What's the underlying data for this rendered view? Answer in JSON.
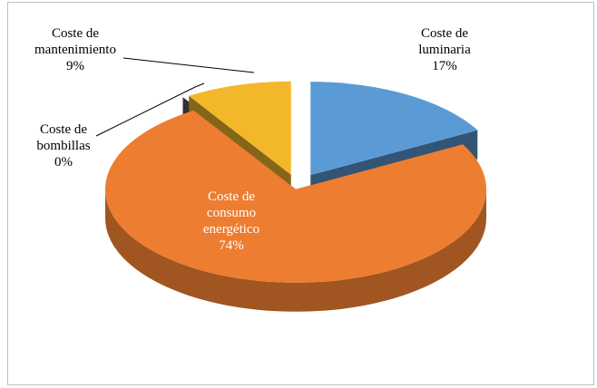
{
  "chart_data": {
    "type": "pie3d",
    "categories": [
      "Coste de luminaria",
      "Coste de consumo energético",
      "Coste de bombillas",
      "Coste de mantenimiento"
    ],
    "values": [
      17,
      74,
      0,
      9
    ],
    "value_labels": [
      "17%",
      "74%",
      "0%",
      "9%"
    ],
    "colors": [
      "#5b9bd5",
      "#ed7d31",
      "#595959",
      "#f2b829"
    ]
  }
}
